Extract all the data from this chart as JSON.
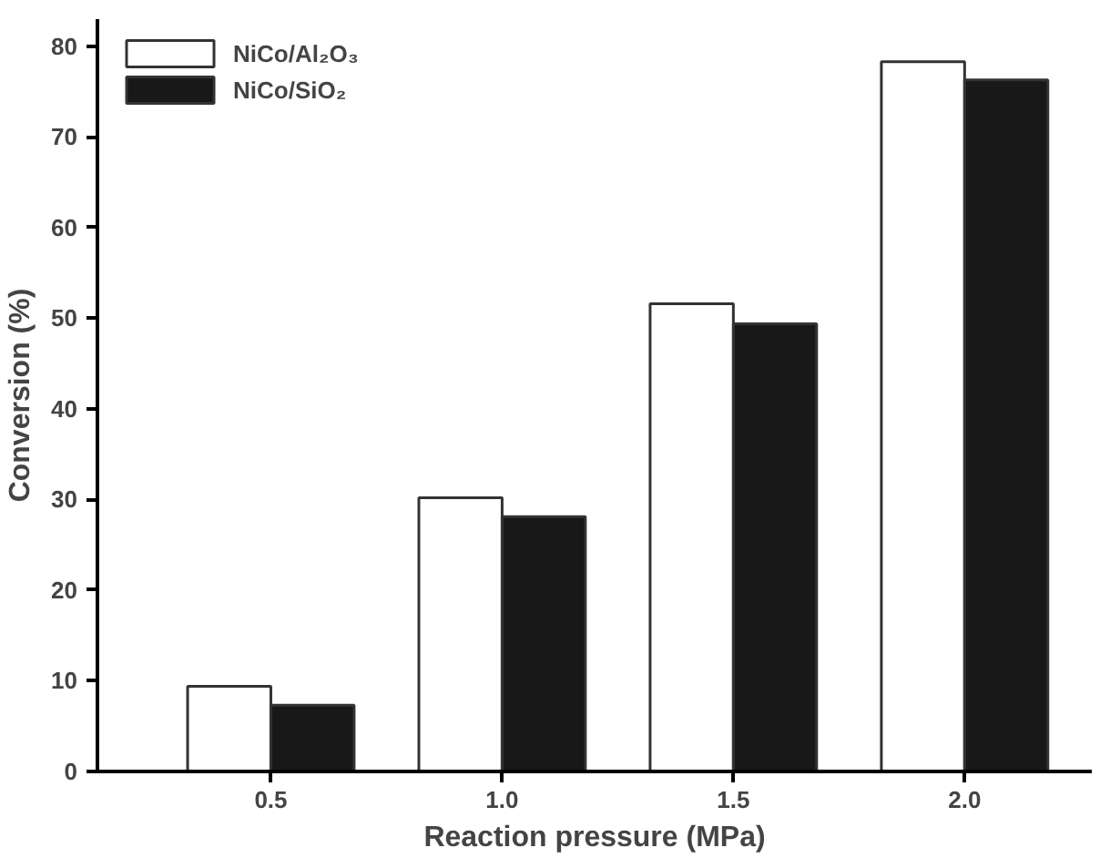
{
  "chart_data": {
    "type": "bar",
    "xlabel": "Reaction pressure (MPa)",
    "ylabel": "Conversion (%)",
    "categories": [
      "0.5",
      "1.0",
      "1.5",
      "2.0"
    ],
    "series": [
      {
        "name": "NiCo/Al₂O₃",
        "color": "#ffffff",
        "values": [
          9.4,
          30.2,
          51.6,
          78.3
        ]
      },
      {
        "name": "NiCo/SiO₂",
        "color": "#181818",
        "values": [
          7.3,
          28.1,
          49.4,
          76.3
        ]
      }
    ],
    "ylim": [
      0,
      83
    ],
    "yticks": [
      0,
      10,
      20,
      30,
      40,
      50,
      60,
      70,
      80
    ],
    "grid": false,
    "legend": "top left"
  }
}
